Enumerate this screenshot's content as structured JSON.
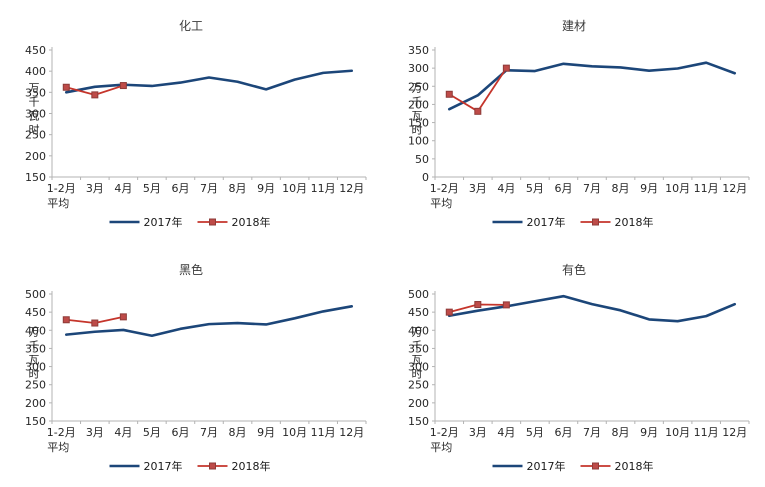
{
  "page": {
    "background": "#ffffff"
  },
  "colors": {
    "series_2017": "#1c4679",
    "series_2018": "#c5352b",
    "marker_fill": "#be4b48",
    "marker_stroke": "#8e3b38",
    "axis": "#b3b3b3",
    "tick_text": "#262626",
    "title_text": "#3a3a3a"
  },
  "legend": {
    "labels": [
      "2017年",
      "2018年"
    ]
  },
  "chart_data": [
    {
      "type": "line",
      "title": "化工",
      "ylabel": "万千瓦时",
      "categories": [
        "1-2月平均",
        "3月",
        "4月",
        "5月",
        "6月",
        "7月",
        "8月",
        "9月",
        "10月",
        "11月",
        "12月"
      ],
      "first_category_lines": [
        "1-2月",
        "平均"
      ],
      "ylim": [
        150,
        450
      ],
      "ytick_step": 50,
      "grid": false,
      "legend_position": "bottom",
      "series": [
        {
          "name": "2017年",
          "marker": false,
          "values": [
            350,
            363,
            368,
            365,
            373,
            385,
            375,
            357,
            380,
            396,
            401
          ]
        },
        {
          "name": "2018年",
          "marker": true,
          "values": [
            362,
            344,
            366
          ]
        }
      ]
    },
    {
      "type": "line",
      "title": "建材",
      "ylabel": "万千瓦时",
      "categories": [
        "1-2月平均",
        "3月",
        "4月",
        "5月",
        "6月",
        "7月",
        "8月",
        "9月",
        "10月",
        "11月",
        "12月"
      ],
      "first_category_lines": [
        "1-2月",
        "平均"
      ],
      "ylim": [
        0,
        350
      ],
      "ytick_step": 50,
      "grid": false,
      "legend_position": "bottom",
      "series": [
        {
          "name": "2017年",
          "marker": false,
          "values": [
            187,
            225,
            294,
            292,
            312,
            305,
            302,
            293,
            299,
            315,
            286
          ]
        },
        {
          "name": "2018年",
          "marker": true,
          "values": [
            228,
            181,
            300
          ]
        }
      ]
    },
    {
      "type": "line",
      "title": "黑色",
      "ylabel": "万千瓦时",
      "categories": [
        "1-2月平均",
        "3月",
        "4月",
        "5月",
        "6月",
        "7月",
        "8月",
        "9月",
        "10月",
        "11月",
        "12月"
      ],
      "first_category_lines": [
        "1-2月",
        "平均"
      ],
      "ylim": [
        150,
        500
      ],
      "ytick_step": 50,
      "grid": false,
      "legend_position": "bottom",
      "series": [
        {
          "name": "2017年",
          "marker": false,
          "values": [
            388,
            396,
            401,
            385,
            404,
            417,
            420,
            416,
            433,
            452,
            466
          ]
        },
        {
          "name": "2018年",
          "marker": true,
          "values": [
            429,
            420,
            437
          ]
        }
      ]
    },
    {
      "type": "line",
      "title": "有色",
      "ylabel": "万千瓦时",
      "categories": [
        "1-2月平均",
        "3月",
        "4月",
        "5月",
        "6月",
        "7月",
        "8月",
        "9月",
        "10月",
        "11月",
        "12月"
      ],
      "first_category_lines": [
        "1-2月",
        "平均"
      ],
      "ylim": [
        150,
        500
      ],
      "ytick_step": 50,
      "grid": false,
      "legend_position": "bottom",
      "series": [
        {
          "name": "2017年",
          "marker": false,
          "values": [
            440,
            454,
            466,
            480,
            494,
            472,
            455,
            430,
            425,
            439,
            472
          ]
        },
        {
          "name": "2018年",
          "marker": true,
          "values": [
            450,
            471,
            470
          ]
        }
      ]
    }
  ]
}
